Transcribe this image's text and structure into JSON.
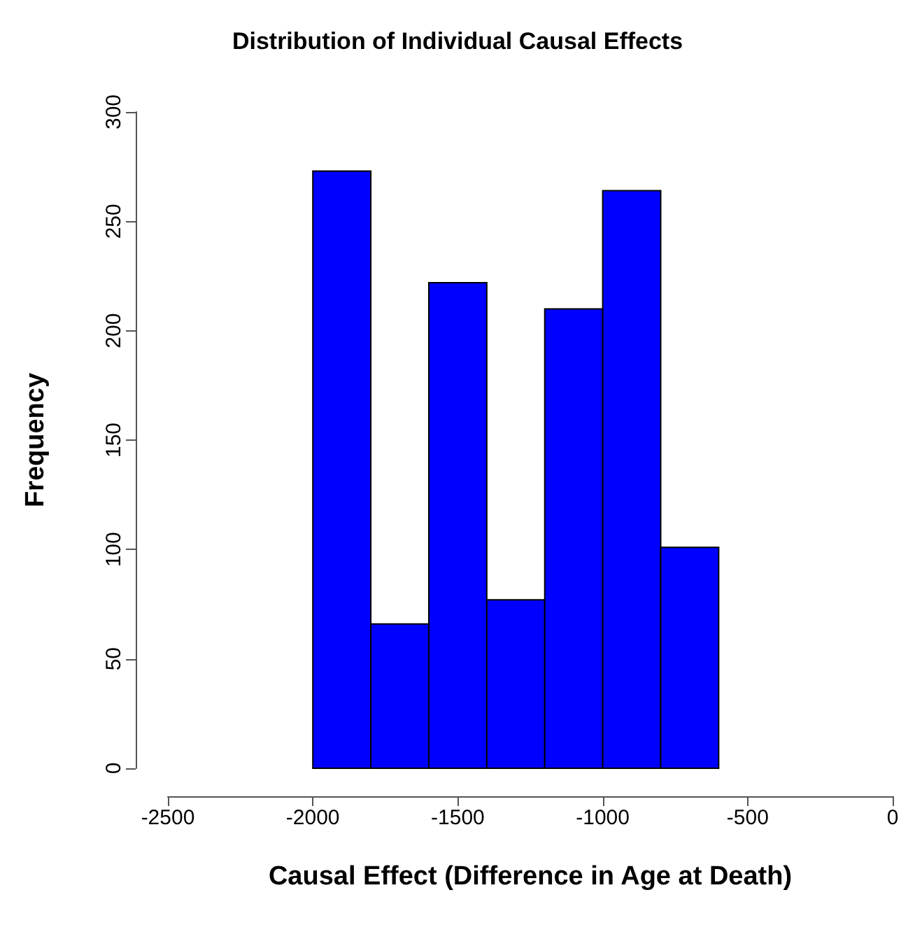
{
  "chart_data": {
    "type": "histogram",
    "title": "Distribution of Individual Causal Effects",
    "xlabel": "Causal Effect (Difference in Age at Death)",
    "ylabel": "Frequency",
    "bins": [
      -2000,
      -1800,
      -1600,
      -1400,
      -1200,
      -1000,
      -800,
      -600
    ],
    "values": [
      273,
      66,
      222,
      77,
      210,
      264,
      101
    ],
    "color": "#0000ff",
    "xlim": [
      -2500,
      0
    ],
    "xticks": [
      -2500,
      -2000,
      -1500,
      -1000,
      -500,
      0
    ],
    "ylim": [
      0,
      300
    ],
    "yticks": [
      0,
      50,
      100,
      150,
      200,
      250,
      300
    ],
    "grid": false
  }
}
